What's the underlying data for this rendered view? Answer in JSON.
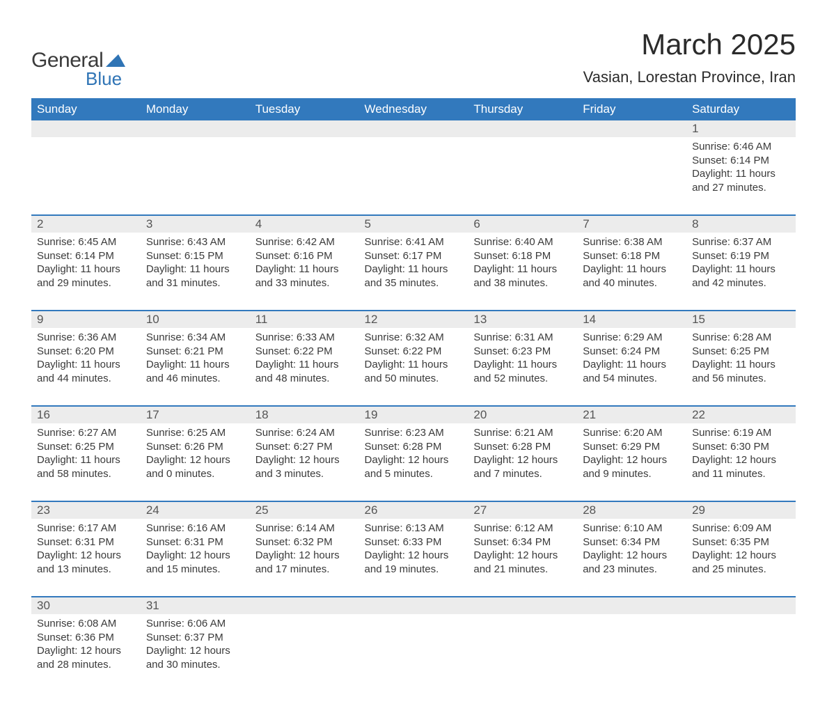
{
  "brand": {
    "line1": "General",
    "line2": "Blue",
    "accent_color": "#2f74b5"
  },
  "title": "March 2025",
  "location": "Vasian, Lorestan Province, Iran",
  "header_bg": "#3279bd",
  "stripe_bg": "#ececec",
  "border_color": "#3279bd",
  "text_color": "#3a3a3a",
  "columns": [
    "Sunday",
    "Monday",
    "Tuesday",
    "Wednesday",
    "Thursday",
    "Friday",
    "Saturday"
  ],
  "rows": [
    [
      null,
      null,
      null,
      null,
      null,
      null,
      {
        "day": "1",
        "sunrise": "6:46 AM",
        "sunset": "6:14 PM",
        "daylight": "11 hours and 27 minutes."
      }
    ],
    [
      {
        "day": "2",
        "sunrise": "6:45 AM",
        "sunset": "6:14 PM",
        "daylight": "11 hours and 29 minutes."
      },
      {
        "day": "3",
        "sunrise": "6:43 AM",
        "sunset": "6:15 PM",
        "daylight": "11 hours and 31 minutes."
      },
      {
        "day": "4",
        "sunrise": "6:42 AM",
        "sunset": "6:16 PM",
        "daylight": "11 hours and 33 minutes."
      },
      {
        "day": "5",
        "sunrise": "6:41 AM",
        "sunset": "6:17 PM",
        "daylight": "11 hours and 35 minutes."
      },
      {
        "day": "6",
        "sunrise": "6:40 AM",
        "sunset": "6:18 PM",
        "daylight": "11 hours and 38 minutes."
      },
      {
        "day": "7",
        "sunrise": "6:38 AM",
        "sunset": "6:18 PM",
        "daylight": "11 hours and 40 minutes."
      },
      {
        "day": "8",
        "sunrise": "6:37 AM",
        "sunset": "6:19 PM",
        "daylight": "11 hours and 42 minutes."
      }
    ],
    [
      {
        "day": "9",
        "sunrise": "6:36 AM",
        "sunset": "6:20 PM",
        "daylight": "11 hours and 44 minutes."
      },
      {
        "day": "10",
        "sunrise": "6:34 AM",
        "sunset": "6:21 PM",
        "daylight": "11 hours and 46 minutes."
      },
      {
        "day": "11",
        "sunrise": "6:33 AM",
        "sunset": "6:22 PM",
        "daylight": "11 hours and 48 minutes."
      },
      {
        "day": "12",
        "sunrise": "6:32 AM",
        "sunset": "6:22 PM",
        "daylight": "11 hours and 50 minutes."
      },
      {
        "day": "13",
        "sunrise": "6:31 AM",
        "sunset": "6:23 PM",
        "daylight": "11 hours and 52 minutes."
      },
      {
        "day": "14",
        "sunrise": "6:29 AM",
        "sunset": "6:24 PM",
        "daylight": "11 hours and 54 minutes."
      },
      {
        "day": "15",
        "sunrise": "6:28 AM",
        "sunset": "6:25 PM",
        "daylight": "11 hours and 56 minutes."
      }
    ],
    [
      {
        "day": "16",
        "sunrise": "6:27 AM",
        "sunset": "6:25 PM",
        "daylight": "11 hours and 58 minutes."
      },
      {
        "day": "17",
        "sunrise": "6:25 AM",
        "sunset": "6:26 PM",
        "daylight": "12 hours and 0 minutes."
      },
      {
        "day": "18",
        "sunrise": "6:24 AM",
        "sunset": "6:27 PM",
        "daylight": "12 hours and 3 minutes."
      },
      {
        "day": "19",
        "sunrise": "6:23 AM",
        "sunset": "6:28 PM",
        "daylight": "12 hours and 5 minutes."
      },
      {
        "day": "20",
        "sunrise": "6:21 AM",
        "sunset": "6:28 PM",
        "daylight": "12 hours and 7 minutes."
      },
      {
        "day": "21",
        "sunrise": "6:20 AM",
        "sunset": "6:29 PM",
        "daylight": "12 hours and 9 minutes."
      },
      {
        "day": "22",
        "sunrise": "6:19 AM",
        "sunset": "6:30 PM",
        "daylight": "12 hours and 11 minutes."
      }
    ],
    [
      {
        "day": "23",
        "sunrise": "6:17 AM",
        "sunset": "6:31 PM",
        "daylight": "12 hours and 13 minutes."
      },
      {
        "day": "24",
        "sunrise": "6:16 AM",
        "sunset": "6:31 PM",
        "daylight": "12 hours and 15 minutes."
      },
      {
        "day": "25",
        "sunrise": "6:14 AM",
        "sunset": "6:32 PM",
        "daylight": "12 hours and 17 minutes."
      },
      {
        "day": "26",
        "sunrise": "6:13 AM",
        "sunset": "6:33 PM",
        "daylight": "12 hours and 19 minutes."
      },
      {
        "day": "27",
        "sunrise": "6:12 AM",
        "sunset": "6:34 PM",
        "daylight": "12 hours and 21 minutes."
      },
      {
        "day": "28",
        "sunrise": "6:10 AM",
        "sunset": "6:34 PM",
        "daylight": "12 hours and 23 minutes."
      },
      {
        "day": "29",
        "sunrise": "6:09 AM",
        "sunset": "6:35 PM",
        "daylight": "12 hours and 25 minutes."
      }
    ],
    [
      {
        "day": "30",
        "sunrise": "6:08 AM",
        "sunset": "6:36 PM",
        "daylight": "12 hours and 28 minutes."
      },
      {
        "day": "31",
        "sunrise": "6:06 AM",
        "sunset": "6:37 PM",
        "daylight": "12 hours and 30 minutes."
      },
      null,
      null,
      null,
      null,
      null
    ]
  ],
  "labels": {
    "sunrise": "Sunrise:",
    "sunset": "Sunset:",
    "daylight": "Daylight:"
  }
}
